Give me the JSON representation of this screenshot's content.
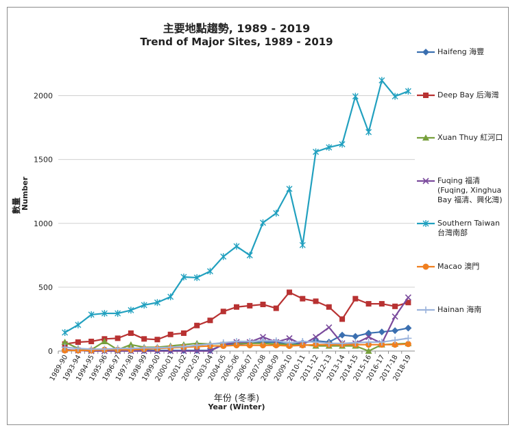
{
  "chart_data": {
    "type": "line",
    "title_zh": "主要地點趨勢, 1989 - 2019",
    "title_en": "Trend of Major Sites, 1989 - 2019",
    "ylabel_zh": "數量",
    "ylabel_en": "Number",
    "xlabel_zh": "年份 (冬季)",
    "xlabel_en": "Year (Winter)",
    "ylim": [
      0,
      2250
    ],
    "yticks": [
      0,
      500,
      1000,
      1500,
      2000
    ],
    "grid": true,
    "legend_position": "right",
    "categories": [
      "1989-90",
      "1993-94",
      "1994-95",
      "1995-96",
      "1996-97",
      "1997-98",
      "1998-99",
      "1999-00",
      "2000-01",
      "2001-02",
      "2002-03",
      "2003-04",
      "2004-05",
      "2005-06",
      "2006-07",
      "2007-08",
      "2008-09",
      "2009-10",
      "2010-11",
      "2011-12",
      "2012-13",
      "2013-14",
      "2014-15",
      "2015-16",
      "2016-17",
      "2017-18",
      "2018-19"
    ],
    "series": [
      {
        "name": "Haifeng 海豐",
        "color": "#3a6fb0",
        "marker": "diamond",
        "values": [
          10,
          5,
          5,
          5,
          5,
          5,
          5,
          5,
          5,
          5,
          5,
          5,
          50,
          55,
          60,
          70,
          70,
          50,
          65,
          80,
          70,
          125,
          115,
          140,
          150,
          160,
          180
        ]
      },
      {
        "name": "Deep Bay 后海灣",
        "color": "#b83232",
        "marker": "square",
        "values": [
          55,
          70,
          75,
          95,
          100,
          140,
          95,
          90,
          130,
          140,
          200,
          240,
          310,
          345,
          355,
          365,
          335,
          460,
          410,
          390,
          345,
          250,
          410,
          370,
          370,
          350,
          380
        ]
      },
      {
        "name": "Xuan Thuy 紅河口",
        "color": "#77a03c",
        "marker": "triangle",
        "values": [
          70,
          20,
          10,
          75,
          10,
          50,
          30,
          30,
          40,
          50,
          60,
          55,
          60,
          60,
          60,
          60,
          55,
          50,
          50,
          40,
          40,
          40,
          40,
          0,
          50,
          55,
          60
        ]
      },
      {
        "name": "Fuqing 福清 (Fuqing, Xinghua Bay 福清、興化灣)",
        "color": "#7a4a9c",
        "marker": "x",
        "values": [
          10,
          5,
          0,
          0,
          0,
          0,
          0,
          0,
          0,
          0,
          0,
          0,
          50,
          70,
          70,
          110,
          70,
          100,
          50,
          110,
          185,
          60,
          60,
          110,
          60,
          270,
          420
        ]
      },
      {
        "name": "Southern Taiwan 台灣南部",
        "color": "#21a0bf",
        "marker": "star",
        "values": [
          145,
          205,
          285,
          295,
          295,
          320,
          360,
          380,
          425,
          580,
          575,
          625,
          740,
          820,
          750,
          1005,
          1080,
          1270,
          830,
          1560,
          1595,
          1620,
          1995,
          1715,
          2120,
          1995,
          2035
        ]
      },
      {
        "name": "Macao 澳門",
        "color": "#f07f1f",
        "marker": "circle",
        "values": [
          5,
          5,
          5,
          10,
          10,
          10,
          15,
          20,
          25,
          30,
          35,
          40,
          40,
          45,
          45,
          45,
          45,
          40,
          45,
          50,
          50,
          50,
          50,
          50,
          50,
          50,
          55
        ]
      },
      {
        "name": "Hainan 海南",
        "color": "#9bb3dc",
        "marker": "plus",
        "values": [
          30,
          20,
          15,
          15,
          20,
          20,
          25,
          25,
          30,
          35,
          45,
          55,
          65,
          75,
          75,
          80,
          80,
          65,
          75,
          70,
          60,
          60,
          65,
          70,
          70,
          85,
          100
        ]
      }
    ]
  }
}
